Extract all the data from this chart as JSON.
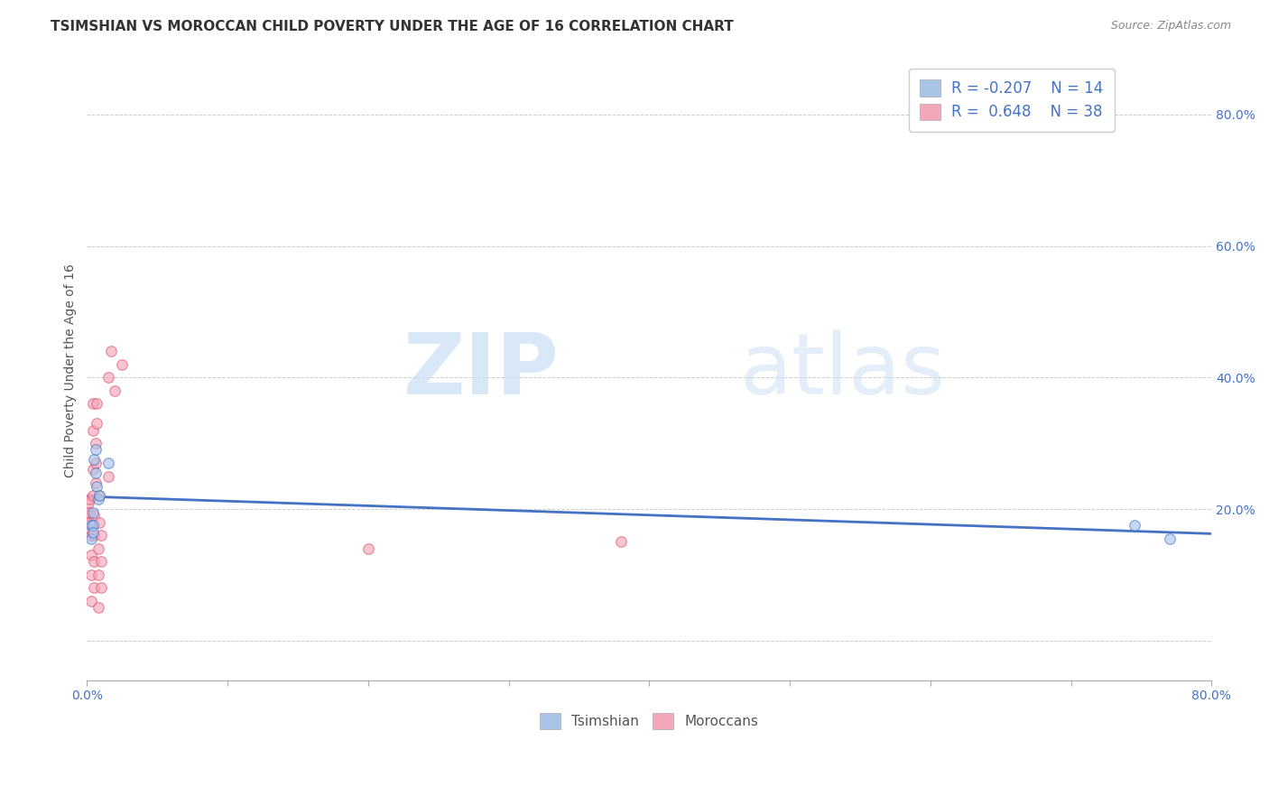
{
  "title": "TSIMSHIAN VS MOROCCAN CHILD POVERTY UNDER THE AGE OF 16 CORRELATION CHART",
  "source": "Source: ZipAtlas.com",
  "ylabel": "Child Poverty Under the Age of 16",
  "watermark_zip": "ZIP",
  "watermark_atlas": "atlas",
  "legend_r_tsimshian": "R = -0.207",
  "legend_n_tsimshian": "N = 14",
  "legend_r_moroccan": "R =  0.648",
  "legend_n_moroccan": "N = 38",
  "ytick_values": [
    0.0,
    0.2,
    0.4,
    0.6,
    0.8
  ],
  "ytick_labels": [
    "",
    "20.0%",
    "40.0%",
    "60.0%",
    "80.0%"
  ],
  "xtick_values": [
    0.0,
    0.1,
    0.2,
    0.3,
    0.4,
    0.5,
    0.6,
    0.7,
    0.8
  ],
  "xtick_labels_visible": [
    "0.0%",
    "",
    "",
    "",
    "",
    "",
    "",
    "",
    "80.0%"
  ],
  "xlim": [
    0.0,
    0.8
  ],
  "ylim": [
    -0.06,
    0.88
  ],
  "tsimshian_x": [
    0.003,
    0.003,
    0.004,
    0.004,
    0.004,
    0.005,
    0.006,
    0.006,
    0.007,
    0.008,
    0.009,
    0.015,
    0.745,
    0.77
  ],
  "tsimshian_y": [
    0.175,
    0.155,
    0.195,
    0.175,
    0.165,
    0.275,
    0.29,
    0.255,
    0.235,
    0.215,
    0.22,
    0.27,
    0.175,
    0.155
  ],
  "moroccan_x": [
    0.001,
    0.001,
    0.001,
    0.002,
    0.002,
    0.002,
    0.003,
    0.003,
    0.003,
    0.003,
    0.004,
    0.004,
    0.004,
    0.004,
    0.005,
    0.005,
    0.005,
    0.005,
    0.006,
    0.006,
    0.006,
    0.007,
    0.007,
    0.008,
    0.008,
    0.008,
    0.009,
    0.009,
    0.01,
    0.01,
    0.01,
    0.015,
    0.015,
    0.017,
    0.02,
    0.025,
    0.2,
    0.38
  ],
  "moroccan_y": [
    0.17,
    0.19,
    0.21,
    0.18,
    0.195,
    0.215,
    0.06,
    0.1,
    0.13,
    0.16,
    0.22,
    0.26,
    0.32,
    0.36,
    0.08,
    0.12,
    0.16,
    0.19,
    0.24,
    0.27,
    0.3,
    0.33,
    0.36,
    0.05,
    0.1,
    0.14,
    0.18,
    0.22,
    0.08,
    0.12,
    0.16,
    0.25,
    0.4,
    0.44,
    0.38,
    0.42,
    0.14,
    0.15
  ],
  "moroccan_line_x_start": 0.001,
  "moroccan_line_x_end": 0.38,
  "moroccan_line_y_top": 0.88,
  "tsimshian_color": "#aac4e8",
  "moroccan_color": "#f4a7b9",
  "tsimshian_line_color": "#4472c4",
  "moroccan_line_color": "#e05070",
  "background_color": "#ffffff",
  "grid_color": "#cccccc",
  "title_fontsize": 11,
  "axis_label_fontsize": 10,
  "tick_fontsize": 10,
  "legend_fontsize": 11,
  "marker_size": 70,
  "marker_alpha": 0.65,
  "line_width": 2.0
}
